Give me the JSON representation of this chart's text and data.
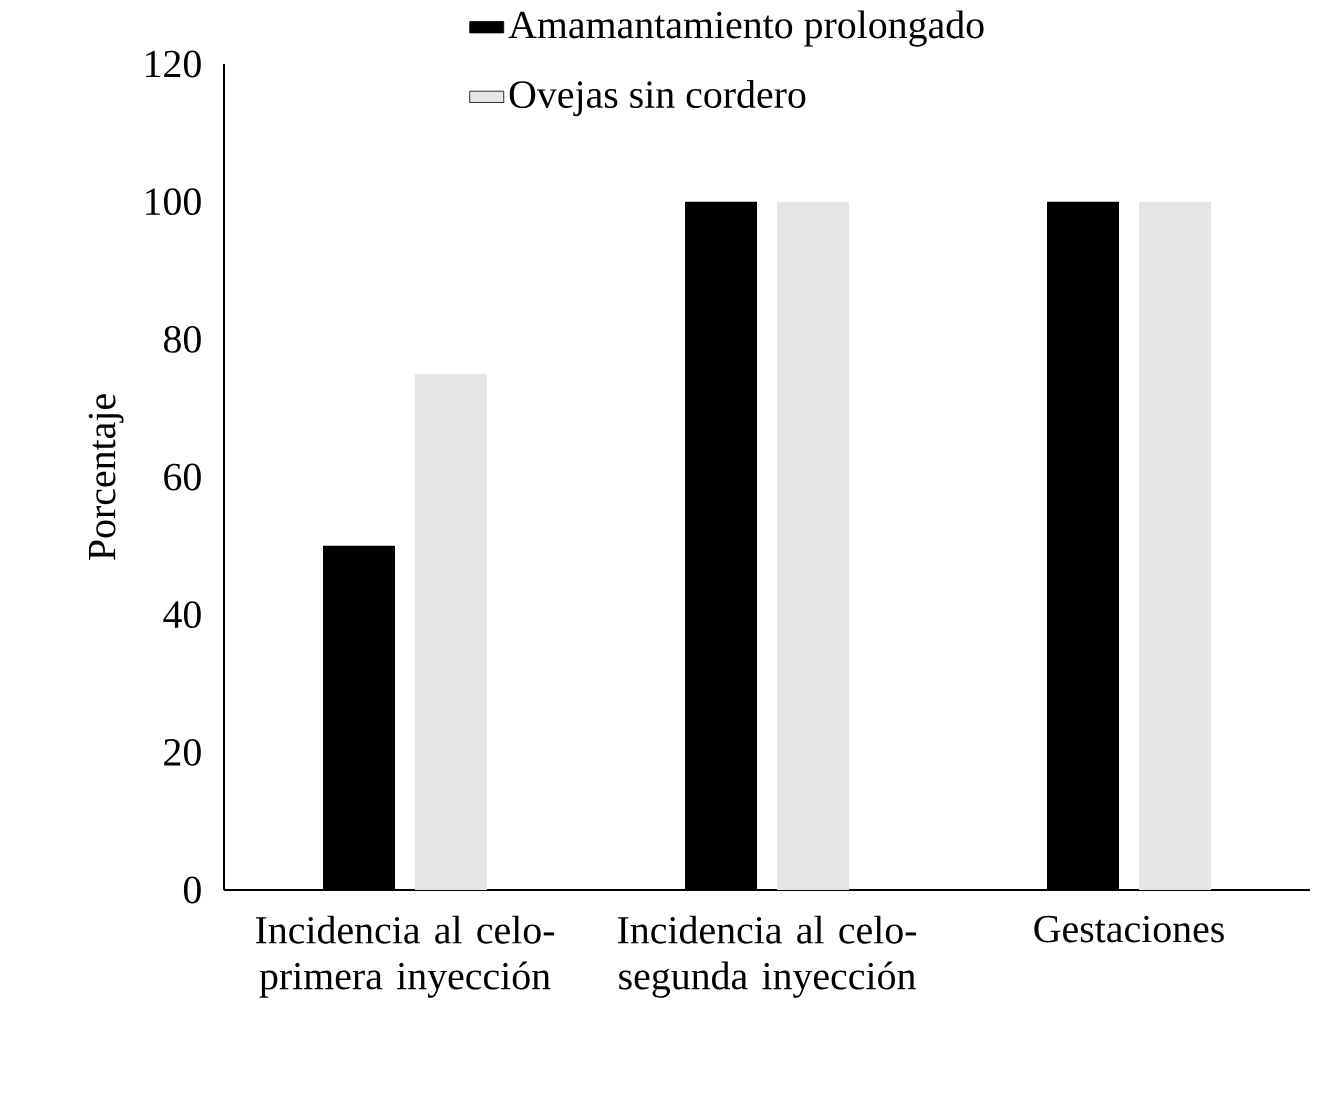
{
  "chart_data": {
    "type": "bar",
    "ylabel": "Porcentaje",
    "categories": [
      "Incidencia al celo-primera inyección",
      "Incidencia al celo-segunda inyección",
      "Gestaciones"
    ],
    "series": [
      {
        "name": "Amamantamiento prolongado",
        "color": "#000000",
        "values": [
          50,
          100,
          100
        ]
      },
      {
        "name": "Ovejas sin cordero",
        "color": "#e6e6e6",
        "values": [
          75,
          100,
          100
        ]
      }
    ],
    "ylim": [
      0,
      120
    ],
    "yticks": [
      0,
      20,
      40,
      60,
      80,
      100,
      120
    ],
    "legend": "top",
    "grid": false
  }
}
